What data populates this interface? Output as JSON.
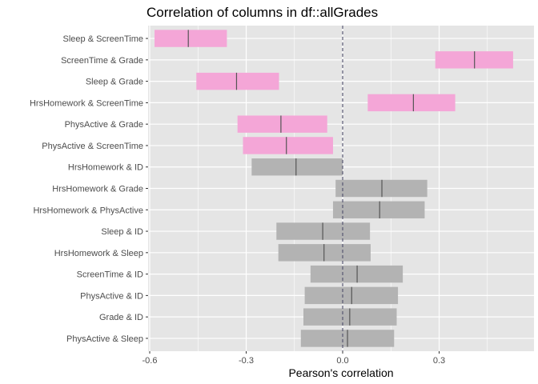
{
  "chart_data": {
    "type": "bar",
    "subtype": "horizontal-interval",
    "title": "Correlation of columns in df::allGrades",
    "xlabel": "Pearson's correlation",
    "ylabel": "",
    "xlim": [
      -0.605,
      0.595
    ],
    "xticks": [
      -0.6,
      -0.3,
      0.0,
      0.3
    ],
    "xtick_labels": [
      "-0.6",
      "-0.3",
      "0.0",
      "0.3"
    ],
    "grid": true,
    "zero_line": "dashed",
    "legend": "none",
    "colors": {
      "significant": "#f4a6d7",
      "not_significant": "#b3b3b3",
      "panel_background": "#e5e5e5",
      "gridline": "#ffffff",
      "estimate_line": "#555555",
      "zero_line": "#4d4d6a"
    },
    "rows": [
      {
        "label": "Sleep & ScreenTime",
        "lower": -0.585,
        "estimate": -0.48,
        "upper": -0.36,
        "significant": true
      },
      {
        "label": "ScreenTime & Grade",
        "lower": 0.288,
        "estimate": 0.41,
        "upper": 0.53,
        "significant": true
      },
      {
        "label": "Sleep & Grade",
        "lower": -0.455,
        "estimate": -0.33,
        "upper": -0.198,
        "significant": true
      },
      {
        "label": "HrsHomework & ScreenTime",
        "lower": 0.078,
        "estimate": 0.22,
        "upper": 0.35,
        "significant": true
      },
      {
        "label": "PhysActive & Grade",
        "lower": -0.327,
        "estimate": -0.192,
        "upper": -0.048,
        "significant": true
      },
      {
        "label": "PhysActive & ScreenTime",
        "lower": -0.31,
        "estimate": -0.175,
        "upper": -0.03,
        "significant": true
      },
      {
        "label": "HrsHomework & ID",
        "lower": -0.283,
        "estimate": -0.145,
        "upper": 0.0,
        "significant": false
      },
      {
        "label": "HrsHomework & Grade",
        "lower": -0.022,
        "estimate": 0.122,
        "upper": 0.263,
        "significant": false
      },
      {
        "label": "HrsHomework & PhysActive",
        "lower": -0.03,
        "estimate": 0.115,
        "upper": 0.255,
        "significant": false
      },
      {
        "label": "Sleep & ID",
        "lower": -0.206,
        "estimate": -0.062,
        "upper": 0.085,
        "significant": false
      },
      {
        "label": "HrsHomework & Sleep",
        "lower": -0.2,
        "estimate": -0.058,
        "upper": 0.087,
        "significant": false
      },
      {
        "label": "ScreenTime & ID",
        "lower": -0.1,
        "estimate": 0.045,
        "upper": 0.187,
        "significant": false
      },
      {
        "label": "PhysActive & ID",
        "lower": -0.118,
        "estimate": 0.028,
        "upper": 0.172,
        "significant": false
      },
      {
        "label": "Grade & ID",
        "lower": -0.122,
        "estimate": 0.022,
        "upper": 0.168,
        "significant": false
      },
      {
        "label": "PhysActive & Sleep",
        "lower": -0.13,
        "estimate": 0.015,
        "upper": 0.16,
        "significant": false
      }
    ]
  }
}
